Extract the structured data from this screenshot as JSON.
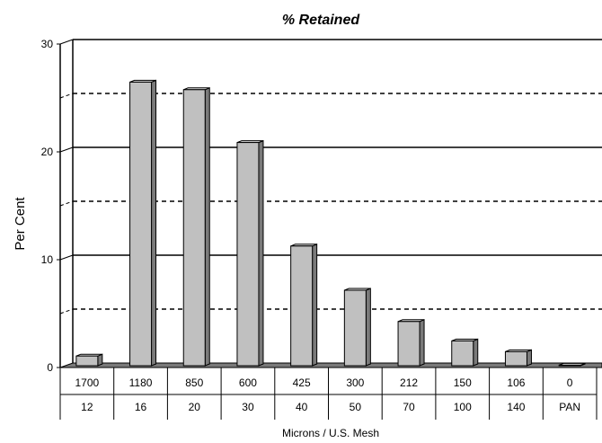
{
  "chart_data": {
    "type": "bar",
    "title": "% Retained",
    "xlabel": "Microns / U.S. Mesh",
    "ylabel": "Per Cent",
    "ylim": [
      0,
      30
    ],
    "yticks": [
      0,
      10,
      20,
      30
    ],
    "grid": {
      "solid": [
        10,
        20,
        30
      ],
      "dashed": [
        5,
        15,
        25
      ]
    },
    "categories_microns": [
      "1700",
      "1180",
      "850",
      "600",
      "425",
      "300",
      "212",
      "150",
      "106",
      "0"
    ],
    "categories_mesh": [
      "12",
      "16",
      "20",
      "30",
      "40",
      "50",
      "70",
      "100",
      "140",
      "PAN"
    ],
    "values": [
      0.9,
      26.3,
      25.6,
      20.7,
      11.1,
      7.0,
      4.1,
      2.3,
      1.3,
      0.05
    ],
    "colors": {
      "bar_face": "#c0c0c0",
      "bar_side": "#7a7a7a",
      "bar_top": "#e0e0e0",
      "bar_stroke": "#000000",
      "back_wall": "#ffffff",
      "floor": "#7a7a7a"
    }
  }
}
